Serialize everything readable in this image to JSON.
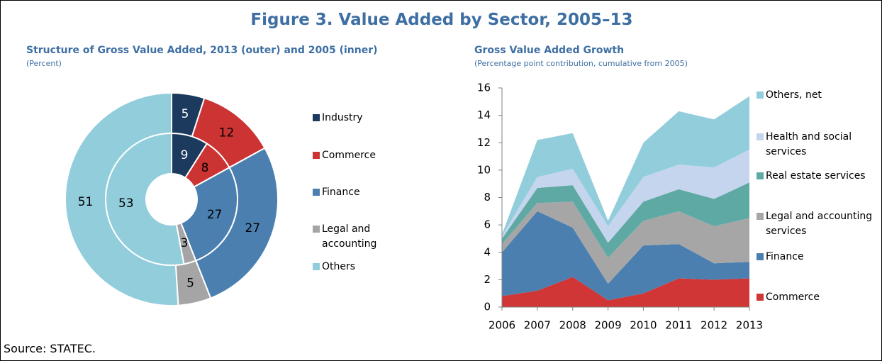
{
  "title": "Figure 3. Value Added by Sector, 2005–13",
  "source": "Source: STATEC.",
  "chart_data": [
    {
      "type": "donut",
      "title": "Structure of Gross Value Added, 2013 (outer) and 2005 (inner)",
      "subtitle": "(Percent)",
      "categories": [
        "Industry",
        "Commerce",
        "Finance",
        "Legal and accounting",
        "Others"
      ],
      "colors": [
        "#1b3a5e",
        "#cc3333",
        "#4a7fb0",
        "#a5a5a5",
        "#92cddc"
      ],
      "series": [
        {
          "values": [
            5,
            12,
            27,
            5,
            51
          ]
        },
        {
          "values": [
            9,
            8,
            27,
            3,
            53
          ]
        }
      ]
    },
    {
      "type": "stacked_area",
      "title": "Gross Value Added Growth",
      "subtitle": "(Percentage point contribution, cumulative from 2005)",
      "categories": [
        "2006",
        "2007",
        "2008",
        "2009",
        "2010",
        "2011",
        "2012",
        "2013"
      ],
      "ylim": [
        0,
        16
      ],
      "yticks": [
        0,
        2,
        4,
        6,
        8,
        10,
        12,
        14,
        16
      ],
      "series": [
        {
          "name": "Commerce",
          "color": "#d03636",
          "values": [
            0.8,
            1.2,
            2.2,
            0.5,
            1.0,
            2.1,
            2.0,
            2.1
          ]
        },
        {
          "name": "Finance",
          "color": "#4a7fb0",
          "values": [
            3.2,
            5.8,
            3.6,
            1.2,
            3.5,
            2.5,
            1.2,
            1.2
          ]
        },
        {
          "name": "Legal and accounting services",
          "color": "#a6a6a6",
          "values": [
            0.6,
            0.6,
            1.9,
            1.9,
            1.8,
            2.4,
            2.7,
            3.2
          ]
        },
        {
          "name": "Real estate services",
          "color": "#5fa9a5",
          "values": [
            0.4,
            1.1,
            1.2,
            1.1,
            1.4,
            1.6,
            2.0,
            2.6
          ]
        },
        {
          "name": "Health and social services",
          "color": "#c5d5ee",
          "values": [
            0.2,
            0.8,
            1.2,
            1.2,
            1.8,
            1.8,
            2.3,
            2.4
          ]
        },
        {
          "name": "Others, net",
          "color": "#92cddc",
          "values": [
            0.1,
            2.7,
            2.6,
            0.4,
            2.5,
            3.9,
            3.5,
            3.9
          ]
        }
      ]
    }
  ]
}
